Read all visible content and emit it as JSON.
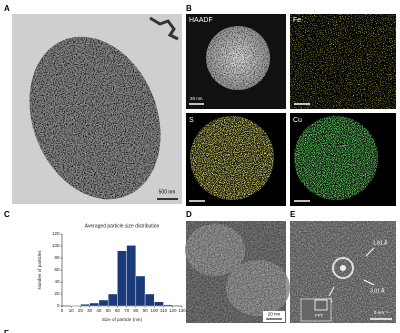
{
  "figure": {
    "a": {
      "label": "A",
      "scale_bar": "500 nm"
    },
    "b": {
      "label": "B",
      "panels": [
        {
          "label": "HAADF",
          "scale_bar": "20 nm"
        },
        {
          "label": "Fe"
        },
        {
          "label": "S"
        },
        {
          "label": "Cu"
        }
      ]
    },
    "c": {
      "label": "C"
    },
    "d": {
      "label": "D",
      "scale_bar": "20 nm"
    },
    "e": {
      "label": "E",
      "annotations": [
        "1.81 Å",
        "3.01 Å",
        "3.05 Å"
      ],
      "inset": "FFT",
      "scale_bar": "5 nm⁻¹"
    },
    "f": {
      "label": "F"
    }
  },
  "chart_data": {
    "type": "histogram",
    "title": "Averaged particle size distribution",
    "x_label": "Size of particle (nm)",
    "y_label": "Number of particles",
    "bins": [
      10,
      20,
      30,
      40,
      50,
      60,
      70,
      80,
      90,
      100,
      110,
      120
    ],
    "values": [
      1,
      3,
      5,
      10,
      20,
      92,
      101,
      50,
      20,
      7,
      2
    ],
    "color": "#1b3a7a",
    "xlim": [
      0,
      130
    ],
    "xticks": [
      0,
      10,
      20,
      30,
      40,
      50,
      60,
      70,
      80,
      90,
      100,
      110,
      120,
      130
    ],
    "ylim": [
      0,
      120
    ],
    "yticks": [
      0,
      20,
      40,
      60,
      80,
      100,
      120
    ]
  }
}
